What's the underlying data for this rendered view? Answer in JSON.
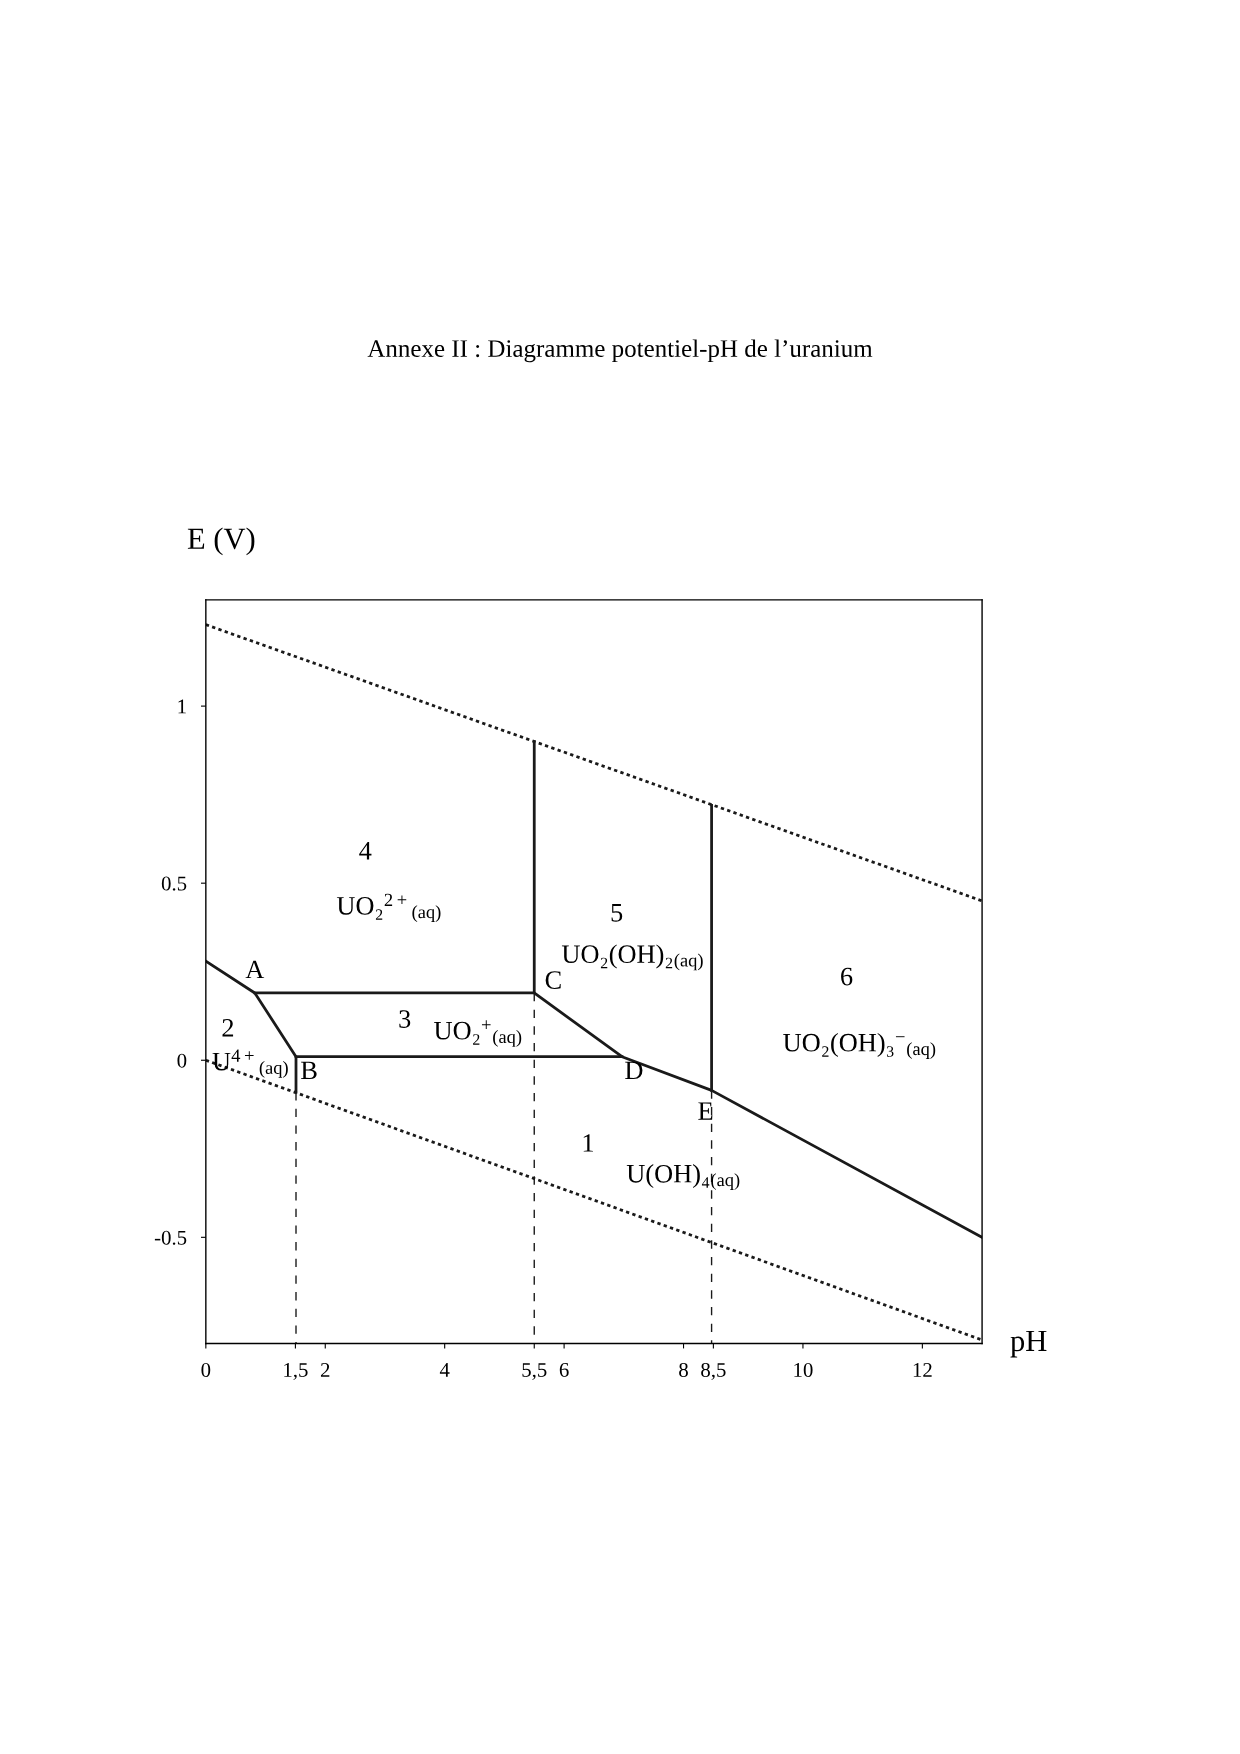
{
  "chart_data": {
    "type": "line",
    "title": "Annexe II : Diagramme potentiel-pH de l’uranium",
    "xlabel": "pH",
    "ylabel": "E (V)",
    "xlim": [
      0,
      13
    ],
    "ylim": [
      -0.8,
      1.3
    ],
    "xticks": [
      0,
      {
        "value": 1.5,
        "label": "1,5"
      },
      2,
      4,
      {
        "value": 5.5,
        "label": "5,5"
      },
      6,
      8,
      {
        "value": 8.5,
        "label": "8,5"
      },
      10,
      12
    ],
    "yticks": [
      -0.5,
      0,
      0.5,
      1
    ],
    "grid": false,
    "legend": false,
    "marker": "none",
    "series": [
      {
        "color": "#1a1a1a",
        "line_style": "dotted",
        "x": [
          0,
          13
        ],
        "values": [
          1.23,
          0.45
        ]
      },
      {
        "color": "#1a1a1a",
        "line_style": "dotted",
        "x": [
          0,
          13
        ],
        "values": [
          0,
          -0.79
        ]
      },
      {
        "color": "#1a1a1a",
        "line_style": "solid",
        "x": [
          0,
          0.82,
          1.51,
          1.51
        ],
        "values": [
          0.28,
          0.19,
          0.01,
          -0.09
        ]
      },
      {
        "color": "#1a1a1a",
        "line_style": "solid",
        "x": [
          0.82,
          5.5,
          5.5
        ],
        "values": [
          0.19,
          0.19,
          0.9
        ]
      },
      {
        "color": "#1a1a1a",
        "line_style": "solid",
        "x": [
          1.51,
          6.97
        ],
        "values": [
          0.01,
          0.01
        ]
      },
      {
        "color": "#1a1a1a",
        "line_style": "solid",
        "x": [
          5.5,
          6.97,
          8.47,
          13
        ],
        "values": [
          0.19,
          0.01,
          -0.085,
          -0.5
        ]
      },
      {
        "color": "#1a1a1a",
        "line_style": "solid",
        "x": [
          8.47,
          8.47
        ],
        "values": [
          -0.085,
          0.72
        ]
      },
      {
        "color": "#1a1a1a",
        "line_style": "dashed",
        "x": [
          1.51,
          1.51
        ],
        "values": [
          -0.09,
          -0.8
        ]
      },
      {
        "color": "#1a1a1a",
        "line_style": "dashed",
        "x": [
          5.5,
          5.5
        ],
        "values": [
          0.19,
          -0.8
        ]
      },
      {
        "color": "#1a1a1a",
        "line_style": "dashed",
        "x": [
          8.47,
          8.47
        ],
        "values": [
          -0.085,
          -0.8
        ]
      }
    ],
    "annotations": [
      {
        "text": "A",
        "x": 0.82,
        "y": 0.19
      },
      {
        "text": "B",
        "x": 1.51,
        "y": 0.01
      },
      {
        "text": "C",
        "x": 5.5,
        "y": 0.19
      },
      {
        "text": "D",
        "x": 6.97,
        "y": 0.01
      },
      {
        "text": "E",
        "x": 8.47,
        "y": -0.085
      },
      "1",
      "U(OH)₄$_{(aq)}$",
      "2",
      "U$^{4+}$$_{(aq)}$",
      "3",
      "UO₂$^{+}$$_{(aq)}$",
      "4",
      "UO₂$^{2+}$$_{(aq)}$",
      "5",
      "UO₂(OH)₂$_{(aq)}$",
      "6",
      "UO₂(OH)₃$^{−}$$_{(aq)}$"
    ]
  }
}
